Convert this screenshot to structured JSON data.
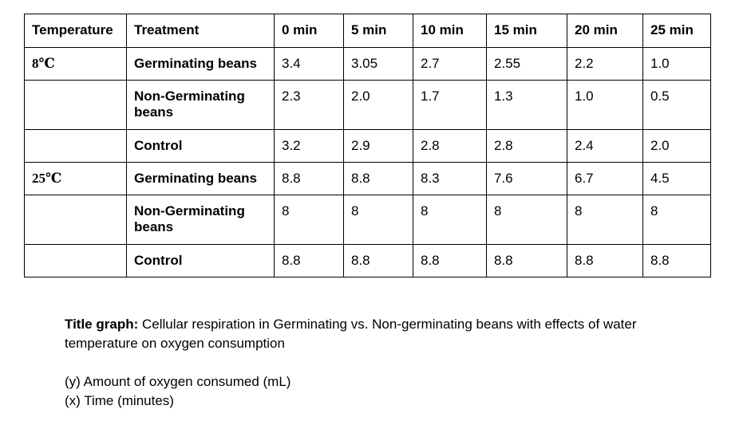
{
  "table": {
    "headers": [
      "Temperature",
      "Treatment",
      "0 min",
      "5 min",
      "10 min",
      "15 min",
      "20 min",
      "25 min"
    ],
    "rows": [
      {
        "temperature": "8℃",
        "treatment": "Germinating beans",
        "values": [
          "3.4",
          "3.05",
          "2.7",
          "2.55",
          "2.2",
          "1.0"
        ]
      },
      {
        "temperature": "",
        "treatment": "Non-Germinating beans",
        "values": [
          "2.3",
          "2.0",
          "1.7",
          "1.3",
          "1.0",
          "0.5"
        ]
      },
      {
        "temperature": "",
        "treatment": "Control",
        "values": [
          "3.2",
          "2.9",
          "2.8",
          "2.8",
          "2.4",
          "2.0"
        ]
      },
      {
        "temperature": "25℃",
        "treatment": "Germinating beans",
        "values": [
          "8.8",
          "8.8",
          "8.3",
          "7.6",
          "6.7",
          "4.5"
        ]
      },
      {
        "temperature": "",
        "treatment": "Non-Germinating beans",
        "values": [
          "8",
          "8",
          "8",
          "8",
          "8",
          "8"
        ]
      },
      {
        "temperature": "",
        "treatment": "Control",
        "values": [
          "8.8",
          "8.8",
          "8.8",
          "8.8",
          "8.8",
          "8.8"
        ]
      }
    ]
  },
  "notes": {
    "title_label": "Title graph:",
    "title_text": " Cellular respiration in Germinating vs. Non-germinating beans with effects of water temperature on oxygen consumption",
    "y_axis": "(y) Amount of oxygen consumed (mL)",
    "x_axis": "(x) Time (minutes)"
  }
}
